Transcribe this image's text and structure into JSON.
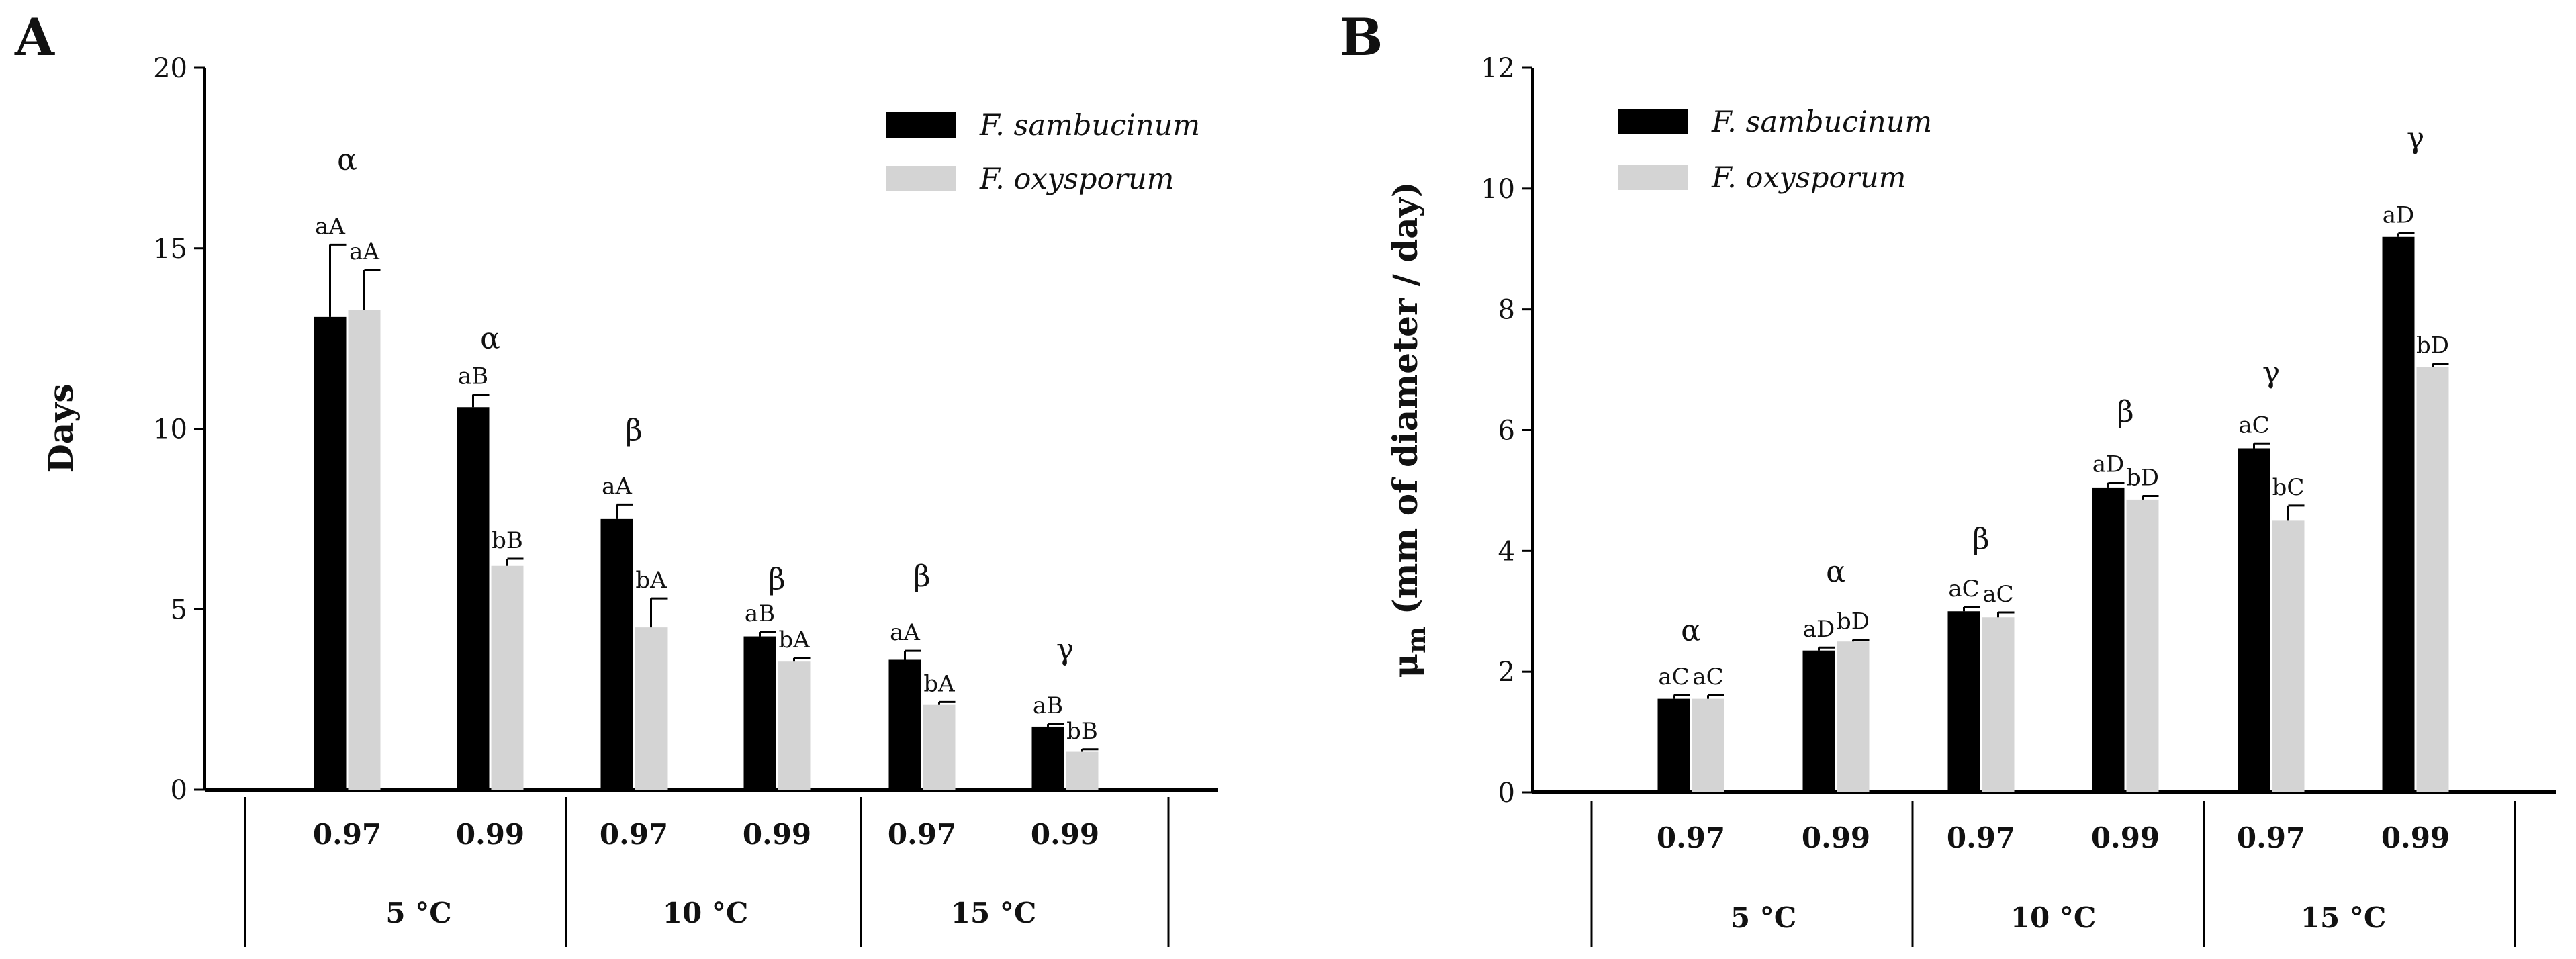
{
  "chart_data": [
    {
      "type": "bar",
      "panel": "A",
      "title": "",
      "xlabel": "",
      "ylabel": "Days",
      "ylim": [
        0,
        20
      ],
      "yticks": [
        0,
        5,
        10,
        15,
        20
      ],
      "water_activity_levels": [
        "0.97",
        "0.99",
        "0.97",
        "0.99",
        "0.97",
        "0.99"
      ],
      "temperature_groups": [
        {
          "label": "5 °C",
          "categories": [
            0,
            1
          ]
        },
        {
          "label": "10 °C",
          "categories": [
            2,
            3
          ]
        },
        {
          "label": "15 °C",
          "categories": [
            4,
            5
          ]
        }
      ],
      "series": [
        {
          "name": "F. sambucinum",
          "color": "#000000",
          "values": [
            13.1,
            10.6,
            7.5,
            4.25,
            3.6,
            1.75
          ],
          "errors": [
            2.0,
            0.35,
            0.4,
            0.12,
            0.25,
            0.07
          ],
          "labels": [
            "aA",
            "aB",
            "aA",
            "aB",
            "aA",
            "aB"
          ]
        },
        {
          "name": "F. oxysporum",
          "color": "#d4d4d4",
          "values": [
            13.3,
            6.2,
            4.5,
            3.55,
            2.35,
            1.05
          ],
          "errors": [
            1.1,
            0.2,
            0.8,
            0.1,
            0.08,
            0.07
          ],
          "labels": [
            "aA",
            "bB",
            "bA",
            "bA",
            "bA",
            "bB"
          ]
        }
      ],
      "group_letters": [
        "α",
        "α",
        "β",
        "β",
        "β",
        "γ"
      ],
      "legend_position": "top-right"
    },
    {
      "type": "bar",
      "panel": "B",
      "title": "",
      "xlabel": "",
      "ylabel": "μm (mm of diameter / day)",
      "ylabel_symbol": "μ",
      "ylabel_subscript": "m",
      "ylabel_text": "(mm of diameter / day)",
      "ylim": [
        0,
        12
      ],
      "yticks": [
        0,
        2,
        4,
        6,
        8,
        10,
        12
      ],
      "water_activity_levels": [
        "0.97",
        "0.99",
        "0.97",
        "0.99",
        "0.97",
        "0.99"
      ],
      "temperature_groups": [
        {
          "label": "5 °C",
          "categories": [
            0,
            1
          ]
        },
        {
          "label": "10 °C",
          "categories": [
            2,
            3
          ]
        },
        {
          "label": "15 °C",
          "categories": [
            4,
            5
          ]
        }
      ],
      "series": [
        {
          "name": "F. sambucinum",
          "color": "#000000",
          "values": [
            1.55,
            2.35,
            3.0,
            5.05,
            5.7,
            9.2
          ],
          "errors": [
            0.06,
            0.05,
            0.07,
            0.08,
            0.08,
            0.06
          ],
          "labels": [
            "aC",
            "aD",
            "aC",
            "aD",
            "aC",
            "aD"
          ]
        },
        {
          "name": "F. oxysporum",
          "color": "#d4d4d4",
          "values": [
            1.55,
            2.5,
            2.9,
            4.85,
            4.5,
            7.05
          ],
          "errors": [
            0.06,
            0.03,
            0.08,
            0.06,
            0.25,
            0.05
          ],
          "labels": [
            "aC",
            "bD",
            "aC",
            "bD",
            "bC",
            "bD"
          ]
        }
      ],
      "group_letters": [
        "α",
        "α",
        "β",
        "β",
        "γ",
        "γ"
      ],
      "legend_position": "top-left"
    }
  ]
}
